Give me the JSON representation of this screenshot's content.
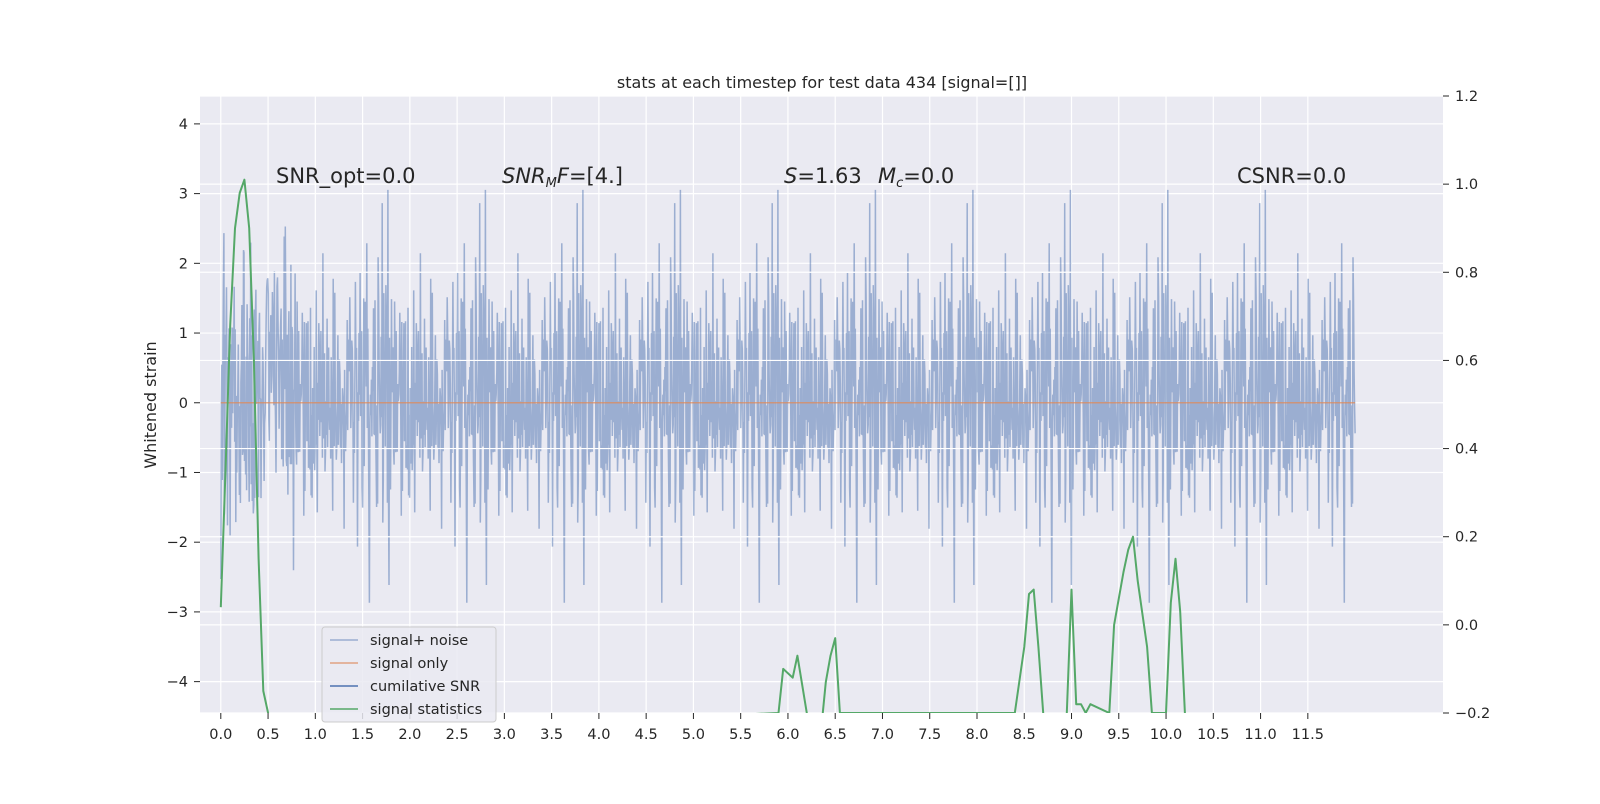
{
  "chart_data": {
    "type": "line",
    "title": "stats at each timestep for test data 434 [signal=[]]",
    "ylabel": "Whitened strain",
    "xlabel": "",
    "xlim": [
      -0.22,
      12.93
    ],
    "ylim": [
      -4.45,
      4.4
    ],
    "y2lim": [
      -0.2,
      1.2
    ],
    "grid": true,
    "legend_position": "lower-left",
    "x_ticks": [
      "0.0",
      "0.5",
      "1.0",
      "1.5",
      "2.0",
      "2.5",
      "3.0",
      "3.5",
      "4.0",
      "4.5",
      "5.0",
      "5.5",
      "6.0",
      "6.5",
      "7.0",
      "7.5",
      "8.0",
      "8.5",
      "9.0",
      "9.5",
      "10.0",
      "10.5",
      "11.0",
      "11.5"
    ],
    "y_ticks": [
      "4",
      "3",
      "2",
      "1",
      "0",
      "−1",
      "−2",
      "−3",
      "−4"
    ],
    "y2_ticks": [
      "1.2",
      "1.0",
      "0.8",
      "0.6",
      "0.4",
      "0.2",
      "0.0",
      "−0.2"
    ],
    "annotations": [
      {
        "text": "SNR_opt=0.0",
        "x": 0.2
      },
      {
        "text": "SNR_MF=[4.]",
        "x": 2.6
      },
      {
        "text": "S=1.63",
        "x": 5.6
      },
      {
        "text": "M_c=0.0",
        "x": 6.6
      },
      {
        "text": "CSNR=0.0",
        "x": 10.4
      }
    ],
    "series": [
      {
        "name": "signal+ noise",
        "color": "#4c72b0",
        "description_values": "white-noise strain, time 0.0 to 12.0, amplitude within about ±2 with spikes to ±4",
        "x_range": [
          0.0,
          12.0
        ],
        "y_range": [
          -4.0,
          4.0
        ]
      },
      {
        "name": "signal only",
        "color": "#dd8452",
        "x": [
          0.0,
          12.0
        ],
        "y": [
          0.0,
          0.0
        ]
      },
      {
        "name": "cumilative SNR",
        "color": "#4c72b0",
        "x": [],
        "y": []
      },
      {
        "name": "signal statistics",
        "color": "#55a868",
        "axis": "right",
        "x": [
          0.0,
          0.05,
          0.1,
          0.15,
          0.2,
          0.25,
          0.3,
          0.35,
          0.4,
          0.45,
          0.5,
          0.55,
          5.9,
          5.95,
          6.05,
          6.1,
          6.2,
          6.3,
          6.4,
          6.45,
          6.5,
          6.55,
          8.4,
          8.5,
          8.55,
          8.6,
          8.65,
          8.7,
          8.85,
          8.95,
          9.0,
          9.05,
          9.1,
          9.15,
          9.2,
          9.4,
          9.45,
          9.55,
          9.6,
          9.65,
          9.7,
          9.8,
          9.85,
          10.0,
          10.05,
          10.1,
          10.15,
          10.2,
          10.25
        ],
        "y": [
          0.04,
          0.35,
          0.68,
          0.9,
          0.98,
          1.01,
          0.9,
          0.6,
          0.15,
          -0.15,
          -0.2,
          -0.25,
          -0.2,
          -0.1,
          -0.12,
          -0.07,
          -0.2,
          -0.35,
          -0.13,
          -0.07,
          -0.03,
          -0.2,
          -0.2,
          -0.05,
          0.07,
          0.08,
          -0.05,
          -0.2,
          -0.3,
          -0.2,
          0.08,
          -0.18,
          -0.18,
          -0.2,
          -0.18,
          -0.2,
          0.0,
          0.12,
          0.17,
          0.2,
          0.1,
          -0.05,
          -0.2,
          -0.2,
          0.05,
          0.15,
          0.03,
          -0.2,
          -0.25
        ]
      }
    ]
  }
}
